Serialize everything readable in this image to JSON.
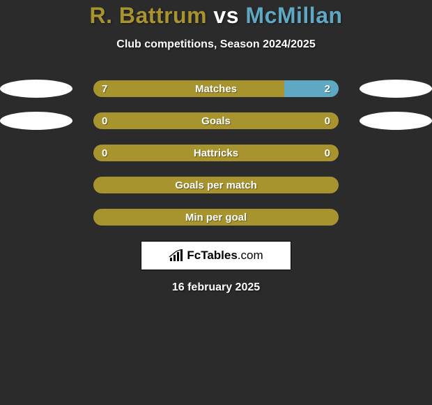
{
  "title": {
    "player1": "R. Battrum",
    "vs": "vs",
    "player2": "McMillan",
    "player1_color": "#a8942f",
    "vs_color": "#ffffff",
    "player2_color": "#5fa8c4"
  },
  "subtitle": "Club competitions, Season 2024/2025",
  "colors": {
    "left": "#a8942f",
    "right": "#5fa8c4",
    "background": "#2b2b2b"
  },
  "rows": [
    {
      "label": "Matches",
      "left_value": "7",
      "right_value": "2",
      "left_pct": 77.8,
      "right_pct": 22.2,
      "show_ovals": true
    },
    {
      "label": "Goals",
      "left_value": "0",
      "right_value": "0",
      "left_pct": 100,
      "right_pct": 0,
      "show_ovals": true
    },
    {
      "label": "Hattricks",
      "left_value": "0",
      "right_value": "0",
      "left_pct": 100,
      "right_pct": 0,
      "show_ovals": false
    },
    {
      "label": "Goals per match",
      "left_value": "",
      "right_value": "",
      "left_pct": 100,
      "right_pct": 0,
      "show_ovals": false
    },
    {
      "label": "Min per goal",
      "left_value": "",
      "right_value": "",
      "left_pct": 100,
      "right_pct": 0,
      "show_ovals": false
    }
  ],
  "brand": {
    "name_bold": "FcTables",
    "name_light": ".com"
  },
  "date": "16 february 2025"
}
